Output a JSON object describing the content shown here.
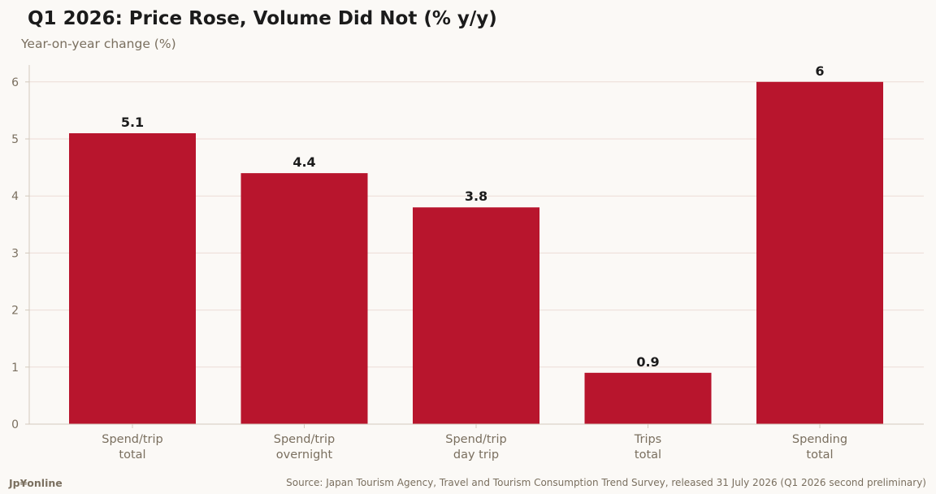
{
  "header": {
    "title": "Q1 2026: Price Rose, Volume Did Not (% y/y)",
    "subtitle": "Year-on-year change (%)"
  },
  "footer": {
    "brand": "Jp¥online",
    "source": "Source: Japan Tourism Agency, Travel and Tourism Consumption Trend Survey, released 31 July 2026 (Q1 2026 second preliminary)"
  },
  "colors": {
    "bar": "#b8152d",
    "grid": "#ecdcd6",
    "axis": "#d3c9bd",
    "tick_text": "#7a6f5f",
    "value_text": "#1b1b1b"
  },
  "chart_data": {
    "type": "bar",
    "title": "Q1 2026: Price Rose, Volume Did Not (% y/y)",
    "ylabel": "Year-on-year change (%)",
    "xlabel": "",
    "categories": [
      [
        "Spend/trip",
        "total"
      ],
      [
        "Spend/trip",
        "overnight"
      ],
      [
        "Spend/trip",
        "day trip"
      ],
      [
        "Trips",
        "total"
      ],
      [
        "Spending",
        "total"
      ]
    ],
    "values": [
      5.1,
      4.4,
      3.8,
      0.9,
      6
    ],
    "value_labels": [
      "5.1",
      "4.4",
      "3.8",
      "0.9",
      "6"
    ],
    "yticks": [
      0,
      1,
      2,
      3,
      4,
      5,
      6
    ],
    "ylim": [
      0,
      6.3
    ],
    "grid": true,
    "legend": "none"
  }
}
